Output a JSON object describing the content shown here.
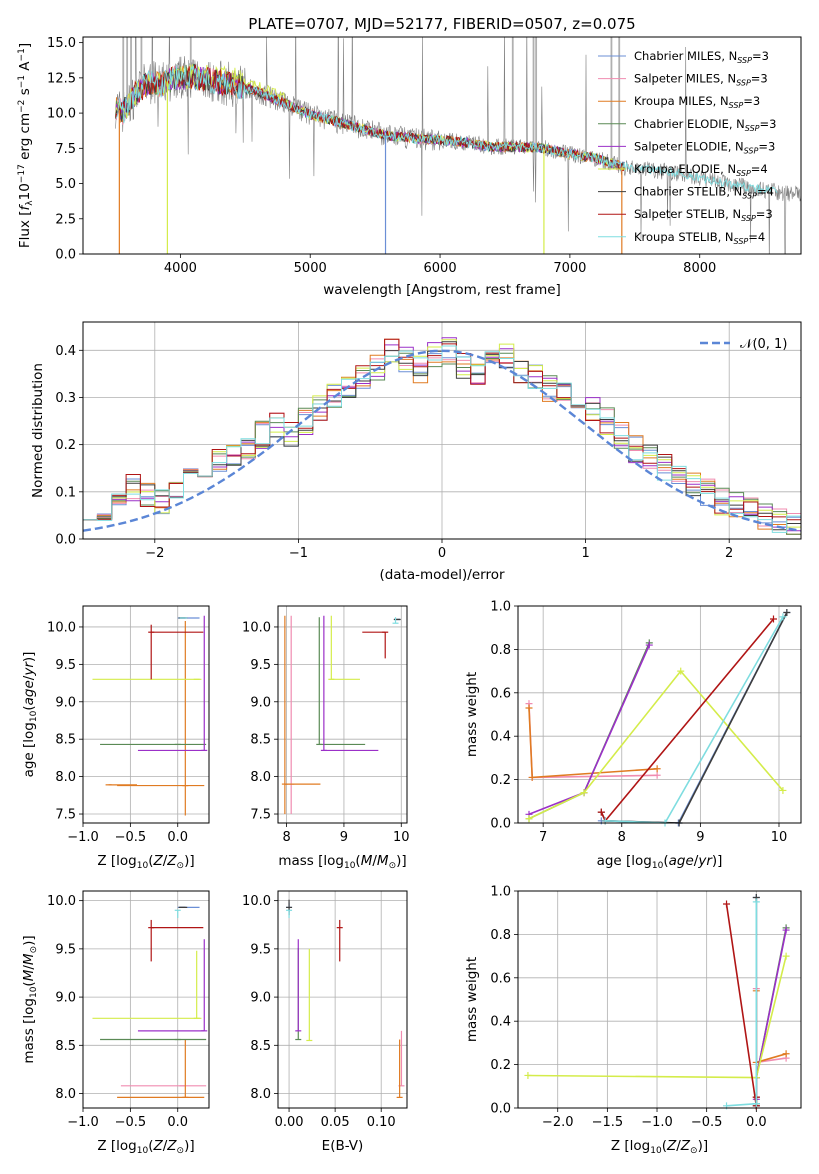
{
  "title": "PLATE=0707, MJD=52177, FIBERID=0507, z=0.075",
  "series": [
    {
      "name": "Chabrier MILES, N",
      "n": "SSP",
      "eq": "=3",
      "color": "#6b8fd6"
    },
    {
      "name": "Salpeter MILES, N",
      "n": "SSP",
      "eq": "=3",
      "color": "#f08cb0"
    },
    {
      "name": "Kroupa MILES, N",
      "n": "SSP",
      "eq": "=3",
      "color": "#e07b22"
    },
    {
      "name": "Chabrier ELODIE, N",
      "n": "SSP",
      "eq": "=3",
      "color": "#5a8a55"
    },
    {
      "name": "Salpeter ELODIE, N",
      "n": "SSP",
      "eq": "=3",
      "color": "#9b30c8"
    },
    {
      "name": "Kroupa ELODIE, N",
      "n": "SSP",
      "eq": "=4",
      "color": "#d4ec4a"
    },
    {
      "name": "Chabrier STELIB, N",
      "n": "SSP",
      "eq": "=4",
      "color": "#3e3e3e"
    },
    {
      "name": "Salpeter STELIB, N",
      "n": "SSP",
      "eq": "=3",
      "color": "#b01515"
    },
    {
      "name": "Kroupa STELIB, N",
      "n": "SSP",
      "eq": "=4",
      "color": "#7fdde0"
    }
  ],
  "chart_data": [
    {
      "id": "spectrum",
      "type": "line",
      "xlabel": "wavelength [Angstrom, rest frame]",
      "ylabel": "Flux [f_λ 10^-17 erg cm^-2 s^-1 A^-1]",
      "xlim": [
        3250,
        8780
      ],
      "ylim": [
        0,
        15.4
      ],
      "xticks": [
        4000,
        5000,
        6000,
        7000,
        8000
      ],
      "yticks": [
        "0.0",
        "2.5",
        "5.0",
        "7.5",
        "10.0",
        "12.5",
        "15.0"
      ],
      "continuum": [
        [
          3500,
          10.5
        ],
        [
          3550,
          10.0
        ],
        [
          3650,
          11.3
        ],
        [
          3750,
          12.2
        ],
        [
          3850,
          12.0
        ],
        [
          3950,
          12.5
        ],
        [
          4100,
          12.6
        ],
        [
          4250,
          12.3
        ],
        [
          4400,
          12.0
        ],
        [
          4600,
          11.5
        ],
        [
          4800,
          10.7
        ],
        [
          5000,
          9.9
        ],
        [
          5200,
          9.4
        ],
        [
          5400,
          8.9
        ],
        [
          5600,
          8.4
        ],
        [
          5800,
          8.2
        ],
        [
          6000,
          8.1
        ],
        [
          6200,
          7.9
        ],
        [
          6400,
          7.6
        ],
        [
          6600,
          7.6
        ],
        [
          6800,
          7.5
        ],
        [
          7000,
          7.1
        ],
        [
          7200,
          6.8
        ],
        [
          7400,
          6.2
        ],
        [
          7600,
          6.0
        ],
        [
          7800,
          5.8
        ],
        [
          8000,
          5.4
        ],
        [
          8200,
          5.0
        ],
        [
          8400,
          4.7
        ],
        [
          8600,
          4.4
        ],
        [
          8780,
          4.2
        ]
      ],
      "legend_loc": "upper right"
    },
    {
      "id": "residuals",
      "type": "histogram",
      "xlabel": "(data-model)/error",
      "ylabel": "Normed distribution",
      "xlim": [
        -2.5,
        2.5
      ],
      "ylim": [
        0,
        0.46
      ],
      "xticks": [
        "−2",
        "−1",
        "0",
        "1",
        "2"
      ],
      "yticks": [
        "0.0",
        "0.1",
        "0.2",
        "0.3",
        "0.4"
      ],
      "reference_label": "𝒩(0, 1)",
      "reference_color": "#5b86d6",
      "bins": 50,
      "values": [
        0.07,
        0.06,
        0.1,
        0.11,
        0.09,
        0.08,
        0.1,
        0.12,
        0.14,
        0.16,
        0.18,
        0.2,
        0.22,
        0.24,
        0.22,
        0.25,
        0.28,
        0.3,
        0.33,
        0.34,
        0.36,
        0.4,
        0.38,
        0.36,
        0.39,
        0.4,
        0.37,
        0.35,
        0.38,
        0.39,
        0.36,
        0.34,
        0.32,
        0.31,
        0.28,
        0.27,
        0.25,
        0.22,
        0.19,
        0.17,
        0.15,
        0.13,
        0.11,
        0.1,
        0.08,
        0.07,
        0.06,
        0.05,
        0.04,
        0.03
      ]
    },
    {
      "id": "age_vs_Z",
      "type": "errorbar",
      "xlabel": "Z [log10(Z/Z⊙)]",
      "ylabel": "age [log10(age/yr)]",
      "xlim": [
        -1.0,
        0.33
      ],
      "ylim": [
        7.38,
        10.28
      ],
      "xticks": [
        "−1.0",
        "−0.5",
        "0.0"
      ],
      "yticks": [
        "7.5",
        "8.0",
        "8.5",
        "9.0",
        "9.5",
        "10.0"
      ],
      "points": [
        {
          "s": 0,
          "x": 0.05,
          "y": 10.12,
          "xerr": [
            0.05,
            0.18
          ],
          "yerr": [
            0.0,
            0.0
          ]
        },
        {
          "s": 1,
          "x": 0.05,
          "y": 10.12,
          "xerr": [
            0.03,
            0.05
          ],
          "yerr": [
            0.0,
            0.0
          ]
        },
        {
          "s": 2,
          "x": 0.08,
          "y": 7.88,
          "xerr": [
            0.72,
            0.2
          ],
          "yerr": [
            0.4,
            2.2
          ]
        },
        {
          "s": 3,
          "x": 0.0,
          "y": 8.43,
          "xerr": [
            0.82,
            0.3
          ],
          "yerr": [
            0.0,
            0.0
          ]
        },
        {
          "s": 4,
          "x": 0.28,
          "y": 8.35,
          "xerr": [
            0.7,
            0.0
          ],
          "yerr": [
            0.0,
            1.8
          ]
        },
        {
          "s": 5,
          "x": 0.2,
          "y": 9.3,
          "xerr": [
            1.1,
            0.05
          ],
          "yerr": [
            0.0,
            0.0
          ]
        },
        {
          "s": 6,
          "x": 0.05,
          "y": 10.12,
          "xerr": [
            0.04,
            0.05
          ],
          "yerr": [
            0.0,
            0.0
          ]
        },
        {
          "s": 7,
          "x": -0.28,
          "y": 9.93,
          "xerr": [
            0.0,
            0.55
          ],
          "yerr": [
            0.63,
            0.1
          ]
        },
        {
          "s": 8,
          "x": 0.05,
          "y": 10.12,
          "xerr": [
            0.03,
            0.05
          ],
          "yerr": [
            0.0,
            0.0
          ]
        },
        {
          "s": 2,
          "x": -0.73,
          "y": 7.89,
          "xerr": [
            0.0,
            0.3
          ],
          "yerr": [
            0.0,
            0.0
          ]
        }
      ]
    },
    {
      "id": "age_vs_mass",
      "type": "errorbar",
      "xlabel": "mass [log10(M/M⊙)]",
      "ylabel": "",
      "xlim": [
        7.85,
        10.1
      ],
      "ylim": [
        7.38,
        10.28
      ],
      "xticks": [
        "8",
        "9",
        "10"
      ],
      "yticks": [
        "7.5",
        "8.0",
        "8.5",
        "9.0",
        "9.5",
        "10.0"
      ],
      "points": [
        {
          "s": 0,
          "x": 9.93,
          "y": 10.1,
          "xerr": [
            0.05,
            0.05
          ],
          "yerr": [
            0.0,
            0.0
          ]
        },
        {
          "s": 1,
          "x": 8.08,
          "y": 7.9,
          "xerr": [
            0.0,
            0.0
          ],
          "yerr": [
            0.4,
            2.25
          ]
        },
        {
          "s": 2,
          "x": 7.97,
          "y": 7.9,
          "xerr": [
            0.0,
            0.62
          ],
          "yerr": [
            0.4,
            2.25
          ]
        },
        {
          "s": 3,
          "x": 8.57,
          "y": 8.43,
          "xerr": [
            0.0,
            0.8
          ],
          "yerr": [
            0.0,
            1.7
          ]
        },
        {
          "s": 4,
          "x": 8.65,
          "y": 8.35,
          "xerr": [
            0.0,
            0.95
          ],
          "yerr": [
            0.0,
            1.8
          ]
        },
        {
          "s": 5,
          "x": 8.78,
          "y": 9.3,
          "xerr": [
            0.0,
            0.5
          ],
          "yerr": [
            0.0,
            0.85
          ]
        },
        {
          "s": 6,
          "x": 9.93,
          "y": 10.1,
          "xerr": [
            0.06,
            0.06
          ],
          "yerr": [
            0.0,
            0.0
          ]
        },
        {
          "s": 7,
          "x": 9.72,
          "y": 9.93,
          "xerr": [
            0.4,
            0.0
          ],
          "yerr": [
            0.35,
            0.0
          ]
        },
        {
          "s": 8,
          "x": 9.9,
          "y": 10.05,
          "xerr": [
            0.0,
            0.0
          ],
          "yerr": [
            0.0,
            0.08
          ]
        }
      ]
    },
    {
      "id": "weight_vs_age",
      "type": "line",
      "xlabel": "age [log10(age/yr)]",
      "ylabel": "mass weight",
      "xlim": [
        6.68,
        10.28
      ],
      "ylim": [
        0,
        1.0
      ],
      "xticks": [
        "7",
        "8",
        "9",
        "10"
      ],
      "yticks": [
        "0.0",
        "0.2",
        "0.4",
        "0.6",
        "0.8",
        "1.0"
      ],
      "lines": [
        {
          "s": 0,
          "x": [
            7.74,
            8.72,
            10.1
          ],
          "y": [
            0.01,
            0.0,
            0.97
          ]
        },
        {
          "s": 1,
          "x": [
            6.82,
            6.86,
            8.45
          ],
          "y": [
            0.55,
            0.21,
            0.22
          ]
        },
        {
          "s": 2,
          "x": [
            6.82,
            6.86,
            8.45
          ],
          "y": [
            0.53,
            0.21,
            0.25
          ]
        },
        {
          "s": 3,
          "x": [
            6.82,
            7.52,
            8.35
          ],
          "y": [
            0.02,
            0.14,
            0.83
          ]
        },
        {
          "s": 4,
          "x": [
            6.82,
            7.52,
            8.35
          ],
          "y": [
            0.04,
            0.14,
            0.82
          ]
        },
        {
          "s": 5,
          "x": [
            6.82,
            7.52,
            8.75,
            10.05
          ],
          "y": [
            0.02,
            0.14,
            0.7,
            0.15
          ]
        },
        {
          "s": 6,
          "x": [
            7.74,
            7.79,
            8.73,
            10.1
          ],
          "y": [
            0.05,
            0.01,
            0.0,
            0.97
          ]
        },
        {
          "s": 7,
          "x": [
            7.74,
            7.79,
            9.93
          ],
          "y": [
            0.05,
            0.01,
            0.94
          ]
        },
        {
          "s": 8,
          "x": [
            7.79,
            8.55,
            10.05
          ],
          "y": [
            0.01,
            0.0,
            0.95
          ]
        }
      ]
    },
    {
      "id": "mass_vs_Z",
      "type": "errorbar",
      "xlabel": "Z [log10(Z/Z⊙)]",
      "ylabel": "mass [log10(M/M⊙)]",
      "xlim": [
        -1.0,
        0.33
      ],
      "ylim": [
        7.85,
        10.1
      ],
      "xticks": [
        "−1.0",
        "−0.5",
        "0.0"
      ],
      "yticks": [
        "8.0",
        "8.5",
        "9.0",
        "9.5",
        "10.0"
      ],
      "points": [
        {
          "s": 0,
          "x": 0.05,
          "y": 9.93,
          "xerr": [
            0.05,
            0.18
          ],
          "yerr": [
            0.0,
            0.0
          ]
        },
        {
          "s": 1,
          "x": 0.05,
          "y": 8.08,
          "xerr": [
            0.65,
            0.25
          ],
          "yerr": [
            0.0,
            0.0
          ]
        },
        {
          "s": 2,
          "x": 0.08,
          "y": 7.96,
          "xerr": [
            0.72,
            0.2
          ],
          "yerr": [
            0.0,
            0.6
          ]
        },
        {
          "s": 3,
          "x": 0.0,
          "y": 8.56,
          "xerr": [
            0.82,
            0.3
          ],
          "yerr": [
            0.0,
            0.0
          ]
        },
        {
          "s": 4,
          "x": 0.28,
          "y": 8.65,
          "xerr": [
            0.7,
            0.0
          ],
          "yerr": [
            0.0,
            0.95
          ]
        },
        {
          "s": 5,
          "x": 0.2,
          "y": 8.78,
          "xerr": [
            1.1,
            0.05
          ],
          "yerr": [
            0.0,
            0.7
          ]
        },
        {
          "s": 6,
          "x": 0.05,
          "y": 9.93,
          "xerr": [
            0.04,
            0.05
          ],
          "yerr": [
            0.0,
            0.0
          ]
        },
        {
          "s": 7,
          "x": -0.28,
          "y": 9.72,
          "xerr": [
            0.0,
            0.55
          ],
          "yerr": [
            0.35,
            0.08
          ]
        },
        {
          "s": 8,
          "x": 0.0,
          "y": 9.9,
          "xerr": [
            0.0,
            0.0
          ],
          "yerr": [
            0.08,
            0.0
          ]
        }
      ]
    },
    {
      "id": "mass_vs_ebv",
      "type": "errorbar",
      "xlabel": "E(B-V)",
      "ylabel": "",
      "xlim": [
        -0.012,
        0.128
      ],
      "ylim": [
        7.85,
        10.1
      ],
      "xticks": [
        "0.00",
        "0.05",
        "0.10"
      ],
      "yticks": [
        "8.0",
        "8.5",
        "9.0",
        "9.5",
        "10.0"
      ],
      "points": [
        {
          "s": 0,
          "x": 0.0,
          "y": 9.93,
          "xerr": [
            0.0,
            0.0
          ],
          "yerr": [
            0.05,
            0.05
          ]
        },
        {
          "s": 1,
          "x": 0.122,
          "y": 8.08,
          "xerr": [
            0.0,
            0.0
          ],
          "yerr": [
            0.0,
            0.57
          ]
        },
        {
          "s": 2,
          "x": 0.12,
          "y": 7.96,
          "xerr": [
            0.0,
            0.0
          ],
          "yerr": [
            0.0,
            0.6
          ]
        },
        {
          "s": 3,
          "x": 0.01,
          "y": 8.56,
          "xerr": [
            0.0,
            0.0
          ],
          "yerr": [
            0.0,
            0.95
          ]
        },
        {
          "s": 4,
          "x": 0.01,
          "y": 8.65,
          "xerr": [
            0.0,
            0.0
          ],
          "yerr": [
            0.0,
            0.95
          ]
        },
        {
          "s": 5,
          "x": 0.022,
          "y": 8.55,
          "xerr": [
            0.0,
            0.0
          ],
          "yerr": [
            0.0,
            0.95
          ]
        },
        {
          "s": 6,
          "x": 0.0,
          "y": 9.93,
          "xerr": [
            0.0,
            0.0
          ],
          "yerr": [
            0.08,
            0.08
          ]
        },
        {
          "s": 7,
          "x": 0.055,
          "y": 9.72,
          "xerr": [
            0.0,
            0.0
          ],
          "yerr": [
            0.35,
            0.08
          ]
        },
        {
          "s": 8,
          "x": 0.0,
          "y": 9.9,
          "xerr": [
            0.0,
            0.0
          ],
          "yerr": [
            0.08,
            0.0
          ]
        }
      ]
    },
    {
      "id": "weight_vs_Z",
      "type": "line",
      "xlabel": "Z [log10(Z/Z⊙)]",
      "ylabel": "mass weight",
      "xlim": [
        -2.4,
        0.45
      ],
      "ylim": [
        0,
        1.0
      ],
      "xticks": [
        "−2.0",
        "−1.5",
        "−1.0",
        "−0.5",
        "0.0"
      ],
      "yticks": [
        "0.0",
        "0.2",
        "0.4",
        "0.6",
        "0.8",
        "1.0"
      ],
      "lines": [
        {
          "s": 0,
          "x": [
            0.0,
            0.0,
            0.0
          ],
          "y": [
            0.01,
            0.02,
            0.97
          ]
        },
        {
          "s": 1,
          "x": [
            0.0,
            0.0,
            0.3
          ],
          "y": [
            0.55,
            0.21,
            0.23
          ]
        },
        {
          "s": 2,
          "x": [
            0.0,
            0.0,
            0.3
          ],
          "y": [
            0.54,
            0.21,
            0.25
          ]
        },
        {
          "s": 3,
          "x": [
            0.0,
            0.0,
            0.3
          ],
          "y": [
            0.02,
            0.14,
            0.83
          ]
        },
        {
          "s": 4,
          "x": [
            0.0,
            0.0,
            0.3
          ],
          "y": [
            0.04,
            0.14,
            0.82
          ]
        },
        {
          "s": 5,
          "x": [
            -2.3,
            0.0,
            0.3
          ],
          "y": [
            0.15,
            0.14,
            0.7
          ]
        },
        {
          "s": 6,
          "x": [
            0.0,
            0.0,
            0.0
          ],
          "y": [
            0.05,
            0.01,
            0.97
          ]
        },
        {
          "s": 7,
          "x": [
            -0.3,
            0.0,
            0.0
          ],
          "y": [
            0.94,
            0.01,
            0.05
          ]
        },
        {
          "s": 8,
          "x": [
            -0.3,
            0.0,
            0.0
          ],
          "y": [
            0.01,
            0.02,
            0.95
          ]
        }
      ]
    }
  ]
}
